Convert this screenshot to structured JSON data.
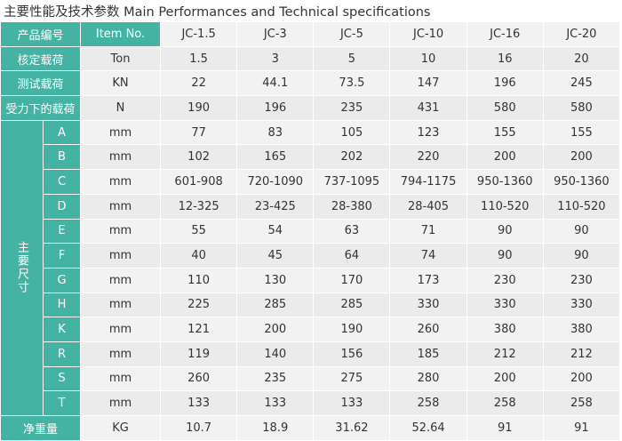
{
  "title": "主要性能及技术参数 Main Performances and Technical specifications",
  "table": {
    "header": {
      "label": "产品编号",
      "unit": "Item No.",
      "models": [
        "JC-1.5",
        "JC-3",
        "JC-5",
        "JC-10",
        "JC-16",
        "JC-20"
      ]
    },
    "rows_top": [
      {
        "label": "核定载荷",
        "unit": "Ton",
        "values": [
          "1.5",
          "3",
          "5",
          "10",
          "16",
          "20"
        ]
      },
      {
        "label": "测试载荷",
        "unit": "KN",
        "values": [
          "22",
          "44.1",
          "73.5",
          "147",
          "196",
          "245"
        ]
      },
      {
        "label": "受力下的载荷",
        "unit": "N",
        "values": [
          "190",
          "196",
          "235",
          "431",
          "580",
          "580"
        ]
      }
    ],
    "dimensions": {
      "label": "主要尺寸",
      "rows": [
        {
          "label": "A",
          "unit": "mm",
          "values": [
            "77",
            "83",
            "105",
            "123",
            "155",
            "155"
          ]
        },
        {
          "label": "B",
          "unit": "mm",
          "values": [
            "102",
            "165",
            "202",
            "220",
            "200",
            "200"
          ]
        },
        {
          "label": "C",
          "unit": "mm",
          "values": [
            "601-908",
            "720-1090",
            "737-1095",
            "794-1175",
            "950-1360",
            "950-1360"
          ]
        },
        {
          "label": "D",
          "unit": "mm",
          "values": [
            "12-325",
            "23-425",
            "28-380",
            "28-405",
            "110-520",
            "110-520"
          ]
        },
        {
          "label": "E",
          "unit": "mm",
          "values": [
            "55",
            "54",
            "63",
            "71",
            "90",
            "90"
          ]
        },
        {
          "label": "F",
          "unit": "mm",
          "values": [
            "40",
            "45",
            "64",
            "74",
            "90",
            "90"
          ]
        },
        {
          "label": "G",
          "unit": "mm",
          "values": [
            "110",
            "130",
            "170",
            "173",
            "230",
            "230"
          ]
        },
        {
          "label": "H",
          "unit": "mm",
          "values": [
            "225",
            "285",
            "285",
            "330",
            "330",
            "330"
          ]
        },
        {
          "label": "K",
          "unit": "mm",
          "values": [
            "121",
            "200",
            "190",
            "260",
            "380",
            "380"
          ]
        },
        {
          "label": "R",
          "unit": "mm",
          "values": [
            "119",
            "140",
            "156",
            "185",
            "212",
            "212"
          ]
        },
        {
          "label": "S",
          "unit": "mm",
          "values": [
            "260",
            "235",
            "275",
            "280",
            "200",
            "200"
          ]
        },
        {
          "label": "T",
          "unit": "mm",
          "values": [
            "133",
            "133",
            "133",
            "258",
            "258",
            "258"
          ]
        }
      ]
    },
    "rows_bottom": [
      {
        "label": "净重量",
        "unit": "KG",
        "values": [
          "10.7",
          "18.9",
          "31.62",
          "52.64",
          "91",
          "91"
        ]
      }
    ]
  }
}
